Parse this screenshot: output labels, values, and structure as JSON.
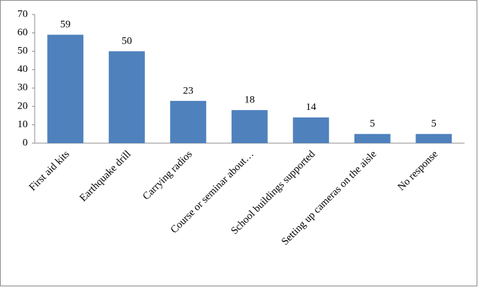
{
  "chart_data": {
    "type": "bar",
    "categories": [
      "First aid kits",
      "Earthquake drill",
      "Carrying radios",
      "Course or seminar about…",
      "School buildings supported",
      "Setting up cameras on the aisle",
      "No response"
    ],
    "values": [
      59,
      50,
      23,
      18,
      14,
      5,
      5
    ],
    "color": "#4f81bd",
    "ylim": [
      0,
      70
    ],
    "yticks": [
      0,
      10,
      20,
      30,
      40,
      50,
      60,
      70
    ],
    "grid": false
  }
}
